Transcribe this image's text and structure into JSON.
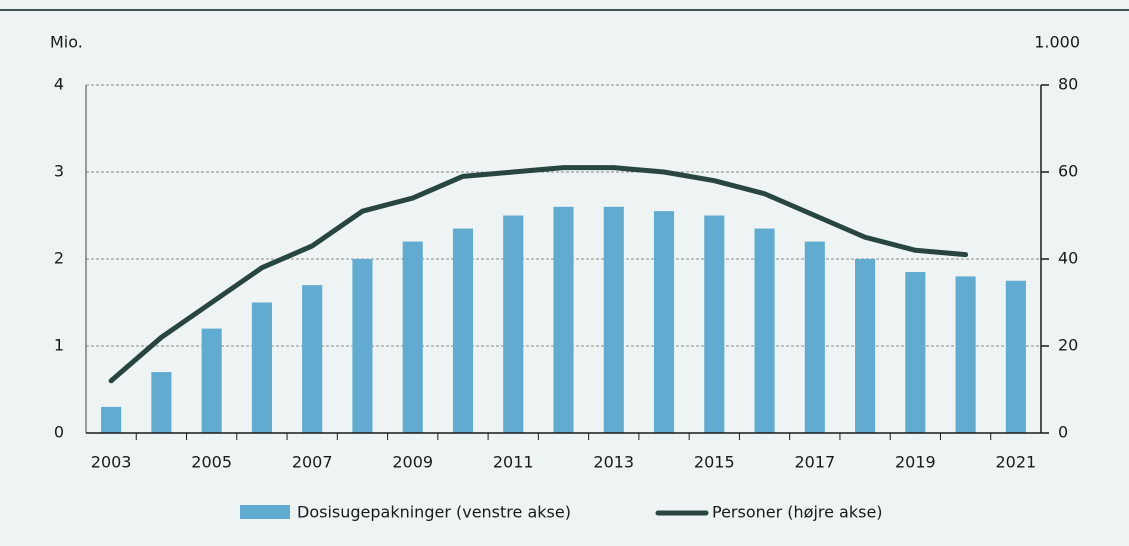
{
  "chart_data": {
    "type": "bar",
    "y_label": "Mio.",
    "y2_label": "1.000",
    "categories": [
      "2003",
      null,
      "2005",
      null,
      "2007",
      null,
      "2009",
      null,
      "2011",
      null,
      "2013",
      null,
      "2015",
      null,
      "2017",
      null,
      "2019",
      null,
      "2021"
    ],
    "series": [
      {
        "name": "Dosisugepakninger (venstre akse)",
        "type": "bar",
        "color": "#62abd0",
        "values": [
          0.3,
          0.7,
          1.2,
          1.5,
          1.7,
          2.0,
          2.2,
          2.35,
          2.5,
          2.6,
          2.6,
          2.55,
          2.5,
          2.35,
          2.2,
          2.0,
          1.85,
          1.8,
          1.75
        ]
      },
      {
        "name": "Personer (højre akse)",
        "type": "line",
        "axis": "y2",
        "color": "#28453f",
        "values": [
          12,
          22,
          30,
          38,
          43,
          51,
          54,
          59,
          60,
          61,
          61,
          60,
          58,
          55,
          50,
          45,
          42,
          41,
          null
        ]
      }
    ],
    "ylim": [
      0,
      4
    ],
    "yticks": [
      0,
      1,
      2,
      3,
      4
    ],
    "y2lim": [
      0,
      80
    ],
    "y2ticks": [
      0,
      20,
      40,
      60,
      80
    ],
    "grid": true
  }
}
